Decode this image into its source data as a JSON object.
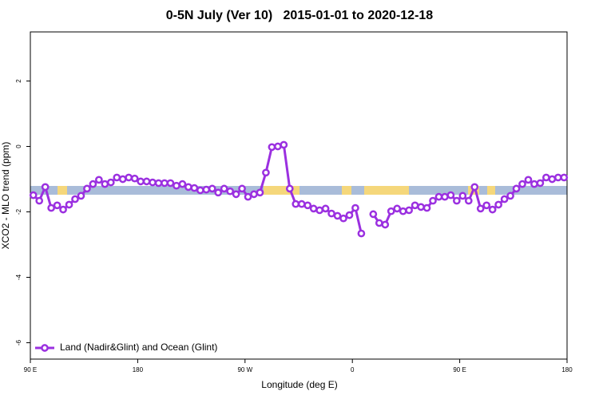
{
  "chart_data": {
    "type": "line",
    "title": "0-5N July (Ver 10)   2015-01-01 to 2020-12-18",
    "xlabel": "Longitude (deg E)",
    "ylabel": "XCO2 - MLO trend (ppm)",
    "xlim": [
      90,
      540
    ],
    "xticks": [
      {
        "value": 90,
        "label": "90 E"
      },
      180,
      {
        "value": 270,
        "label": "90 W"
      },
      {
        "value": 360,
        "label": "0"
      },
      {
        "value": 450,
        "label": "90 E"
      },
      {
        "value": 540,
        "label": "180"
      }
    ],
    "ylim": [
      -6.5,
      3.5
    ],
    "yticks": [
      2,
      0,
      -2,
      -4,
      -6
    ],
    "legend": "bottom-left",
    "x": [
      92.5,
      97.5,
      102.5,
      107.5,
      112.5,
      117.5,
      122.5,
      127.5,
      132.5,
      137.5,
      142.5,
      147.5,
      152.5,
      157.5,
      162.5,
      167.5,
      172.5,
      177.5,
      182.5,
      187.5,
      192.5,
      197.5,
      202.5,
      207.5,
      212.5,
      217.5,
      222.5,
      227.5,
      232.5,
      237.5,
      242.5,
      247.5,
      252.5,
      257.5,
      262.5,
      267.5,
      272.5,
      277.5,
      282.5,
      287.5,
      292.5,
      297.5,
      302.5,
      307.5,
      312.5,
      317.5,
      322.5,
      327.5,
      332.5,
      337.5,
      342.5,
      347.5,
      352.5,
      357.5,
      362.5,
      367.5,
      372.5,
      377.5,
      382.5,
      387.5,
      392.5,
      397.5,
      402.5,
      407.5,
      412.5,
      417.5,
      422.5,
      427.5,
      432.5,
      437.5,
      442.5,
      447.5,
      452.5,
      457.5,
      462.5,
      467.5,
      472.5,
      477.5,
      482.5,
      487.5,
      492.5,
      497.5,
      502.5,
      507.5,
      512.5,
      517.5,
      522.5,
      527.5,
      532.5,
      537.5
    ],
    "series": [
      {
        "name": "Land (Nadir&Glint) and Ocean (Glint)",
        "color": "#9b30e0",
        "values": [
          -1.49,
          -1.66,
          -1.24,
          -1.88,
          -1.8,
          -1.93,
          -1.78,
          -1.61,
          -1.51,
          -1.29,
          -1.15,
          -1.02,
          -1.15,
          -1.1,
          -0.95,
          -1.0,
          -0.95,
          -0.98,
          -1.07,
          -1.07,
          -1.1,
          -1.12,
          -1.12,
          -1.12,
          -1.2,
          -1.15,
          -1.24,
          -1.27,
          -1.34,
          -1.32,
          -1.29,
          -1.41,
          -1.29,
          -1.37,
          -1.46,
          -1.29,
          -1.54,
          -1.46,
          -1.41,
          -0.8,
          -0.02,
          0,
          0.05,
          -1.29,
          -1.76,
          -1.76,
          -1.8,
          -1.9,
          -1.95,
          -1.9,
          -2.05,
          -2.12,
          -2.2,
          -2.1,
          -1.88,
          -2.66,
          null,
          -2.07,
          -2.34,
          -2.39,
          -1.98,
          -1.9,
          -1.98,
          -1.95,
          -1.8,
          -1.85,
          -1.88,
          -1.66,
          -1.54,
          -1.54,
          -1.49,
          -1.66,
          -1.51,
          -1.66,
          -1.24,
          -1.9,
          -1.8,
          -1.93,
          -1.78,
          -1.61,
          -1.51,
          -1.29,
          -1.15,
          -1.02,
          -1.15,
          -1.12,
          -0.95,
          -1.0,
          -0.95,
          -0.95
        ]
      }
    ]
  }
}
